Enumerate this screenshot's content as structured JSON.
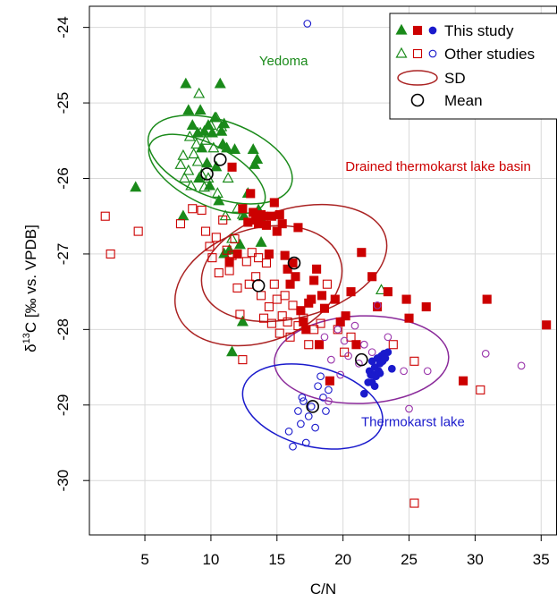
{
  "chart_data": {
    "type": "scatter",
    "xlabel": "C/N",
    "ylabel": {
      "prefix": "δ",
      "sup": "13",
      "rest": "C [‰ vs. VPDB]"
    },
    "xlim": [
      0.8,
      36.2
    ],
    "ylim": [
      -30.72,
      -23.72
    ],
    "x_ticks": [
      5,
      10,
      15,
      20,
      25,
      30,
      35
    ],
    "y_ticks": [
      -24,
      -25,
      -26,
      -27,
      -28,
      -29,
      -30
    ],
    "grid": true,
    "legend_position": "top-right",
    "legend": [
      {
        "label": "This study",
        "kind": "filled"
      },
      {
        "label": "Other studies",
        "kind": "open"
      },
      {
        "label": "SD",
        "kind": "ellipse"
      },
      {
        "label": "Mean",
        "kind": "mean"
      }
    ],
    "annotations": [
      {
        "text": "Yedoma",
        "group": "yedoma"
      },
      {
        "text": "Drained thermokarst lake basin",
        "group": "dtlb"
      },
      {
        "text": "Thermokarst lake",
        "group": "lake"
      }
    ],
    "colors": {
      "yedoma": "#1a8a1a",
      "dtlb": "#cc0000",
      "lake": "#1a1acc",
      "lake_other": "#9933aa",
      "dtlb_ellipse": "#aa2222",
      "lake_ellipse": "#8a2a9a",
      "grid": "#d9d9d9"
    },
    "series": [
      {
        "name": "Yedoma (this study)",
        "group": "yedoma",
        "study": "this",
        "marker": "triangle-filled",
        "points": [
          [
            4.3,
            -26.12
          ],
          [
            7.9,
            -26.5
          ],
          [
            8.1,
            -24.75
          ],
          [
            8.3,
            -25.1
          ],
          [
            8.6,
            -25.3
          ],
          [
            9.0,
            -25.4
          ],
          [
            9.1,
            -26.0
          ],
          [
            9.3,
            -25.6
          ],
          [
            9.5,
            -25.38
          ],
          [
            9.7,
            -25.8
          ],
          [
            9.8,
            -25.3
          ],
          [
            10.1,
            -25.4
          ],
          [
            10.3,
            -25.2
          ],
          [
            10.4,
            -25.85
          ],
          [
            10.7,
            -24.75
          ],
          [
            10.8,
            -25.38
          ],
          [
            10.9,
            -25.55
          ],
          [
            11.0,
            -25.28
          ],
          [
            11.2,
            -25.6
          ],
          [
            11.4,
            -26.95
          ],
          [
            11.6,
            -28.3
          ],
          [
            11.8,
            -25.62
          ],
          [
            12.2,
            -26.88
          ],
          [
            12.4,
            -27.9
          ],
          [
            12.5,
            -26.5
          ],
          [
            12.8,
            -26.2
          ],
          [
            13.2,
            -25.62
          ],
          [
            13.3,
            -25.82
          ],
          [
            13.5,
            -25.75
          ],
          [
            13.6,
            -26.42
          ],
          [
            13.8,
            -26.85
          ],
          [
            14.0,
            -26.6
          ],
          [
            11.0,
            -27.0
          ],
          [
            10.6,
            -26.3
          ],
          [
            9.2,
            -25.1
          ],
          [
            9.9,
            -26.1
          ]
        ]
      },
      {
        "name": "Yedoma (other studies)",
        "group": "yedoma",
        "study": "other",
        "marker": "triangle-open",
        "points": [
          [
            7.7,
            -25.82
          ],
          [
            7.9,
            -25.7
          ],
          [
            8.0,
            -26.0
          ],
          [
            8.3,
            -25.9
          ],
          [
            8.5,
            -26.1
          ],
          [
            8.7,
            -25.68
          ],
          [
            8.9,
            -25.55
          ],
          [
            9.1,
            -24.88
          ],
          [
            9.2,
            -25.4
          ],
          [
            9.3,
            -25.95
          ],
          [
            9.5,
            -26.12
          ],
          [
            9.6,
            -25.5
          ],
          [
            9.8,
            -26.0
          ],
          [
            10.0,
            -25.3
          ],
          [
            10.2,
            -25.6
          ],
          [
            10.4,
            -25.2
          ],
          [
            10.5,
            -26.2
          ],
          [
            10.8,
            -25.32
          ],
          [
            11.1,
            -26.5
          ],
          [
            11.3,
            -26.0
          ],
          [
            11.6,
            -26.8
          ],
          [
            12.0,
            -26.4
          ],
          [
            12.4,
            -26.48
          ],
          [
            22.9,
            -27.48
          ],
          [
            8.4,
            -25.45
          ],
          [
            9.0,
            -25.78
          ]
        ]
      },
      {
        "name": "Drained thermokarst lake basin (this study)",
        "group": "dtlb",
        "study": "this",
        "marker": "square-filled",
        "points": [
          [
            11.6,
            -25.85
          ],
          [
            12.4,
            -26.4
          ],
          [
            12.8,
            -26.58
          ],
          [
            13.0,
            -26.2
          ],
          [
            13.2,
            -26.45
          ],
          [
            13.4,
            -26.55
          ],
          [
            13.6,
            -26.6
          ],
          [
            13.8,
            -26.48
          ],
          [
            14.0,
            -26.5
          ],
          [
            14.2,
            -26.62
          ],
          [
            14.4,
            -27.0
          ],
          [
            14.6,
            -26.5
          ],
          [
            14.8,
            -26.32
          ],
          [
            15.0,
            -26.7
          ],
          [
            15.2,
            -26.48
          ],
          [
            15.4,
            -26.6
          ],
          [
            15.6,
            -27.02
          ],
          [
            15.8,
            -27.2
          ],
          [
            16.0,
            -27.4
          ],
          [
            16.2,
            -27.12
          ],
          [
            16.4,
            -27.3
          ],
          [
            16.6,
            -26.65
          ],
          [
            16.8,
            -27.75
          ],
          [
            17.0,
            -27.9
          ],
          [
            17.2,
            -28.0
          ],
          [
            17.4,
            -27.65
          ],
          [
            17.6,
            -27.6
          ],
          [
            17.8,
            -27.35
          ],
          [
            18.0,
            -27.2
          ],
          [
            18.2,
            -28.2
          ],
          [
            18.4,
            -27.55
          ],
          [
            18.6,
            -27.72
          ],
          [
            19.0,
            -28.68
          ],
          [
            19.4,
            -27.6
          ],
          [
            19.8,
            -27.9
          ],
          [
            20.2,
            -27.82
          ],
          [
            20.6,
            -27.5
          ],
          [
            21.0,
            -28.2
          ],
          [
            21.4,
            -26.98
          ],
          [
            22.2,
            -27.3
          ],
          [
            22.6,
            -27.7
          ],
          [
            23.4,
            -27.5
          ],
          [
            24.8,
            -27.6
          ],
          [
            25.0,
            -27.85
          ],
          [
            26.3,
            -27.7
          ],
          [
            29.1,
            -28.68
          ],
          [
            30.9,
            -27.6
          ],
          [
            35.4,
            -27.94
          ],
          [
            11.4,
            -27.1
          ],
          [
            12.0,
            -27.0
          ]
        ]
      },
      {
        "name": "Drained thermokarst lake basin (other studies)",
        "group": "dtlb",
        "study": "other",
        "marker": "square-open",
        "points": [
          [
            2.0,
            -26.5
          ],
          [
            2.4,
            -27.0
          ],
          [
            4.5,
            -26.7
          ],
          [
            7.7,
            -26.6
          ],
          [
            8.6,
            -26.4
          ],
          [
            9.3,
            -26.42
          ],
          [
            9.6,
            -26.7
          ],
          [
            9.9,
            -26.9
          ],
          [
            10.1,
            -27.05
          ],
          [
            10.4,
            -26.78
          ],
          [
            10.6,
            -27.25
          ],
          [
            10.9,
            -26.55
          ],
          [
            11.2,
            -26.95
          ],
          [
            11.4,
            -27.22
          ],
          [
            11.6,
            -27.02
          ],
          [
            11.8,
            -26.8
          ],
          [
            12.0,
            -27.45
          ],
          [
            12.2,
            -27.8
          ],
          [
            12.4,
            -28.4
          ],
          [
            12.7,
            -27.1
          ],
          [
            12.9,
            -27.4
          ],
          [
            13.1,
            -26.98
          ],
          [
            13.4,
            -27.3
          ],
          [
            13.6,
            -27.05
          ],
          [
            13.8,
            -27.55
          ],
          [
            14.0,
            -27.85
          ],
          [
            14.2,
            -27.12
          ],
          [
            14.4,
            -27.7
          ],
          [
            14.6,
            -27.92
          ],
          [
            14.8,
            -27.4
          ],
          [
            15.0,
            -27.6
          ],
          [
            15.2,
            -28.05
          ],
          [
            15.4,
            -27.82
          ],
          [
            15.6,
            -27.55
          ],
          [
            15.8,
            -27.9
          ],
          [
            16.0,
            -28.1
          ],
          [
            16.2,
            -27.68
          ],
          [
            16.6,
            -27.95
          ],
          [
            17.0,
            -27.85
          ],
          [
            17.4,
            -28.2
          ],
          [
            17.8,
            -28.0
          ],
          [
            18.3,
            -27.92
          ],
          [
            18.8,
            -27.4
          ],
          [
            19.6,
            -28.0
          ],
          [
            20.1,
            -28.3
          ],
          [
            20.6,
            -28.1
          ],
          [
            23.8,
            -28.2
          ],
          [
            25.4,
            -28.42
          ],
          [
            30.4,
            -28.8
          ],
          [
            25.4,
            -30.3
          ]
        ]
      },
      {
        "name": "Thermokarst lake (this study)",
        "group": "lake",
        "study": "this",
        "marker": "circle-filled",
        "points": [
          [
            21.6,
            -28.85
          ],
          [
            21.9,
            -28.7
          ],
          [
            22.0,
            -28.55
          ],
          [
            22.1,
            -28.6
          ],
          [
            22.2,
            -28.42
          ],
          [
            22.3,
            -28.6
          ],
          [
            22.4,
            -28.5
          ],
          [
            22.5,
            -28.62
          ],
          [
            22.6,
            -28.38
          ],
          [
            22.7,
            -28.55
          ],
          [
            22.8,
            -28.45
          ],
          [
            22.9,
            -28.35
          ],
          [
            23.0,
            -28.42
          ],
          [
            23.1,
            -28.32
          ],
          [
            23.2,
            -28.38
          ],
          [
            23.4,
            -28.3
          ],
          [
            23.7,
            -28.52
          ],
          [
            22.2,
            -28.7
          ],
          [
            22.4,
            -28.75
          ],
          [
            22.8,
            -28.58
          ]
        ]
      },
      {
        "name": "Thermokarst lake (other studies, blue)",
        "group": "lake",
        "study": "other",
        "marker": "circle-open",
        "points": [
          [
            17.3,
            -23.95
          ],
          [
            15.9,
            -29.35
          ],
          [
            16.2,
            -29.55
          ],
          [
            16.6,
            -29.08
          ],
          [
            16.8,
            -29.25
          ],
          [
            17.0,
            -28.95
          ],
          [
            17.2,
            -29.5
          ],
          [
            17.6,
            -29.02
          ],
          [
            17.9,
            -29.3
          ],
          [
            18.1,
            -28.75
          ],
          [
            18.3,
            -28.62
          ],
          [
            18.5,
            -28.9
          ],
          [
            18.7,
            -29.08
          ],
          [
            18.9,
            -28.8
          ],
          [
            17.4,
            -29.15
          ],
          [
            16.9,
            -28.9
          ]
        ]
      },
      {
        "name": "Thermokarst lake (other studies, purple)",
        "group": "lake_other",
        "study": "other",
        "marker": "circle-open",
        "points": [
          [
            18.6,
            -28.1
          ],
          [
            19.6,
            -28.0
          ],
          [
            20.1,
            -28.15
          ],
          [
            20.4,
            -28.35
          ],
          [
            20.9,
            -27.95
          ],
          [
            21.2,
            -28.45
          ],
          [
            21.6,
            -28.2
          ],
          [
            22.2,
            -28.3
          ],
          [
            22.6,
            -27.68
          ],
          [
            23.4,
            -28.1
          ],
          [
            24.6,
            -28.55
          ],
          [
            25.0,
            -29.05
          ],
          [
            26.4,
            -28.55
          ],
          [
            30.8,
            -28.32
          ],
          [
            33.5,
            -28.48
          ],
          [
            19.1,
            -28.4
          ],
          [
            19.8,
            -28.6
          ],
          [
            18.9,
            -28.95
          ]
        ]
      }
    ],
    "means": [
      {
        "group": "yedoma",
        "x": 10.7,
        "y": -25.75
      },
      {
        "group": "yedoma",
        "x": 9.7,
        "y": -25.94
      },
      {
        "group": "dtlb",
        "x": 16.3,
        "y": -27.12
      },
      {
        "group": "dtlb",
        "x": 13.6,
        "y": -27.42
      },
      {
        "group": "lake",
        "x": 21.4,
        "y": -28.4
      },
      {
        "group": "lake",
        "x": 17.7,
        "y": -29.02
      }
    ],
    "sd_ellipses": [
      {
        "group": "yedoma",
        "cx": 10.7,
        "cy": -25.75,
        "rx": 2.9,
        "ry": 1.0,
        "angle": -70
      },
      {
        "group": "yedoma",
        "cx": 9.7,
        "cy": -25.94,
        "rx": 2.2,
        "ry": 0.85,
        "angle": -62
      },
      {
        "group": "dtlb",
        "cx": 16.3,
        "cy": -27.12,
        "rx": 7.2,
        "ry": 0.72,
        "angle": -16
      },
      {
        "group": "dtlb",
        "cx": 13.6,
        "cy": -27.42,
        "rx": 6.5,
        "ry": 0.75,
        "angle": -18
      },
      {
        "group": "lake",
        "cx": 21.4,
        "cy": -28.4,
        "rx": 6.6,
        "ry": 0.58,
        "angle": -2
      },
      {
        "group": "lake",
        "cx": 17.7,
        "cy": -29.02,
        "rx": 3.0,
        "ry": 0.95,
        "angle": -75
      }
    ]
  }
}
